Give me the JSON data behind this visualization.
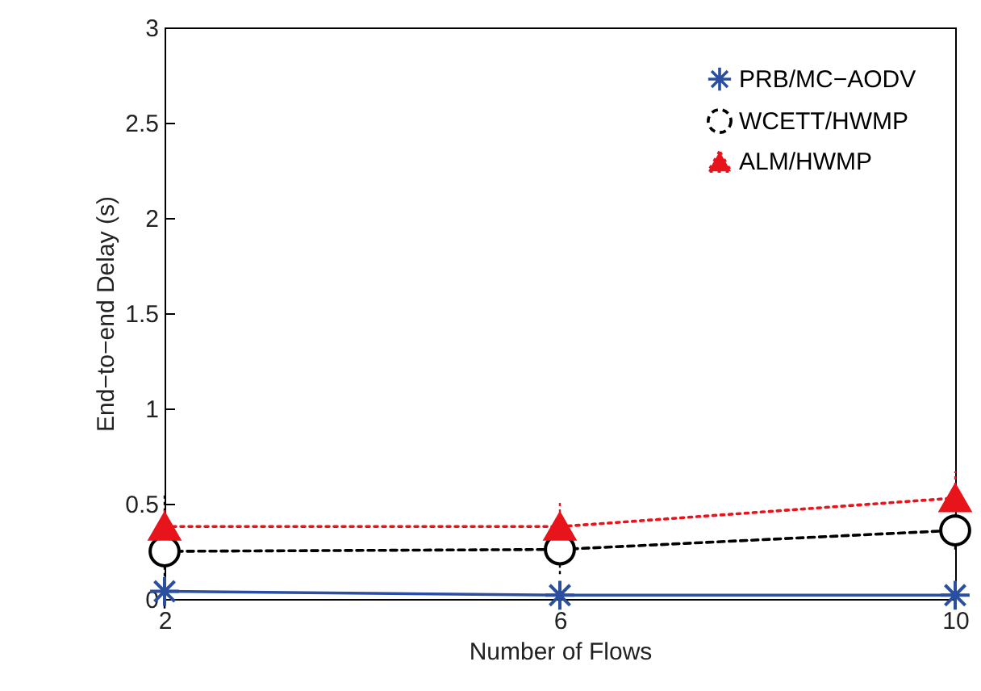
{
  "chart_data": {
    "type": "line",
    "xlabel": "Number of Flows",
    "ylabel": "End−to−end Delay (s)",
    "x": [
      2,
      6,
      10
    ],
    "xlim": [
      2,
      10
    ],
    "xticks": [
      2,
      6,
      10
    ],
    "ylim": [
      0,
      3
    ],
    "yticks": [
      0,
      0.5,
      1,
      1.5,
      2,
      2.5,
      3
    ],
    "grid": false,
    "legend": "top right",
    "series": [
      {
        "name": "PRB/MC−AODV",
        "color": "#2b4fa0",
        "values": [
          0.04,
          0.02,
          0.02
        ],
        "errors": [
          0.01,
          0.01,
          0.01
        ],
        "marker": "cross",
        "line_style": "solid"
      },
      {
        "name": "WCETT/HWMP",
        "color": "#000000",
        "values": [
          0.25,
          0.26,
          0.36
        ],
        "errors": [
          0.3,
          0.13,
          0.1
        ],
        "marker": "circle",
        "line_style": "dashed"
      },
      {
        "name": "ALM/HWMP",
        "color": "#e8141c",
        "values": [
          0.38,
          0.38,
          0.53
        ],
        "errors": [
          0.1,
          0.13,
          0.14
        ],
        "marker": "triangle",
        "line_style": "dotted"
      }
    ]
  }
}
